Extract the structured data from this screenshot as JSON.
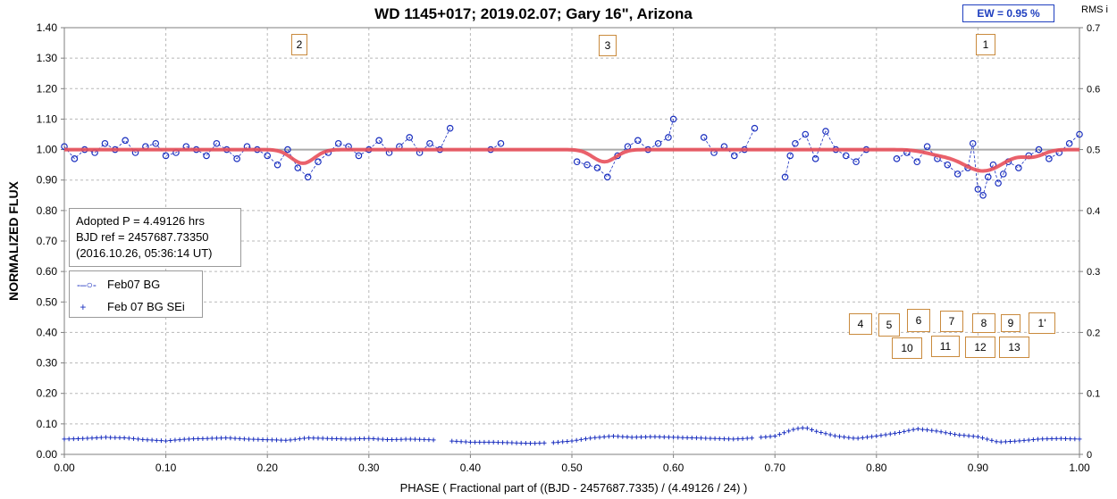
{
  "chart_data": {
    "type": "scatter",
    "title": "WD 1145+017; 2019.02.07; Gary 16\", Arizona",
    "xlabel": "PHASE ( Fractional part of ((BJD - 2457687.7335) / (4.49126 / 24) )",
    "ylabel": "NORMALIZED FLUX",
    "y2label": "RMS i",
    "xlim": [
      0,
      1
    ],
    "ylim": [
      0,
      1.4
    ],
    "y2lim": [
      0,
      0.7
    ],
    "x_ticks": [
      "0.00",
      "0.10",
      "0.20",
      "0.30",
      "0.40",
      "0.50",
      "0.60",
      "0.70",
      "0.80",
      "0.90",
      "1.00"
    ],
    "y_ticks": [
      "0.00",
      "0.10",
      "0.20",
      "0.30",
      "0.40",
      "0.50",
      "0.60",
      "0.70",
      "0.80",
      "0.90",
      "1.00",
      "1.10",
      "1.20",
      "1.30",
      "1.40"
    ],
    "y2_ticks": [
      "0",
      "0.1",
      "0.2",
      "0.3",
      "0.4",
      "0.5",
      "0.6",
      "0.7"
    ],
    "grid": true,
    "reference_line_y": 1.0,
    "dip_model": {
      "name": "model",
      "color": "#e8505b",
      "baseline": 1.0,
      "dips": [
        {
          "center": 0.235,
          "depth": 0.045,
          "width": 0.016
        },
        {
          "center": 0.532,
          "depth": 0.04,
          "width": 0.016
        },
        {
          "center": 0.905,
          "depth": 0.07,
          "width": 0.03
        },
        {
          "center": 0.86,
          "depth": 0.012,
          "width": 0.02
        },
        {
          "center": 0.955,
          "depth": 0.02,
          "width": 0.015
        }
      ]
    },
    "series": [
      {
        "name": "Feb07 BG",
        "marker": "circle",
        "color": "#1a2fbf",
        "line": "dashed",
        "gaps": [
          [
            0.385,
            0.41
          ],
          [
            0.44,
            0.5
          ],
          [
            0.6,
            0.625
          ],
          [
            0.69,
            0.7
          ],
          [
            0.8,
            0.81
          ]
        ],
        "x": [
          0.0,
          0.01,
          0.02,
          0.03,
          0.04,
          0.05,
          0.06,
          0.07,
          0.08,
          0.09,
          0.1,
          0.11,
          0.12,
          0.13,
          0.14,
          0.15,
          0.16,
          0.17,
          0.18,
          0.19,
          0.2,
          0.21,
          0.22,
          0.23,
          0.24,
          0.25,
          0.26,
          0.27,
          0.28,
          0.29,
          0.3,
          0.31,
          0.32,
          0.33,
          0.34,
          0.35,
          0.36,
          0.37,
          0.38,
          0.42,
          0.43,
          0.505,
          0.515,
          0.525,
          0.535,
          0.545,
          0.555,
          0.565,
          0.575,
          0.585,
          0.595,
          0.6,
          0.63,
          0.64,
          0.65,
          0.66,
          0.67,
          0.68,
          0.71,
          0.715,
          0.72,
          0.73,
          0.74,
          0.75,
          0.76,
          0.77,
          0.78,
          0.79,
          0.82,
          0.83,
          0.84,
          0.85,
          0.86,
          0.87,
          0.88,
          0.89,
          0.895,
          0.9,
          0.905,
          0.91,
          0.915,
          0.92,
          0.925,
          0.93,
          0.94,
          0.95,
          0.96,
          0.97,
          0.98,
          0.99,
          1.0
        ],
        "y": [
          1.01,
          0.97,
          1.0,
          0.99,
          1.02,
          1.0,
          1.03,
          0.99,
          1.01,
          1.02,
          0.98,
          0.99,
          1.01,
          1.0,
          0.98,
          1.02,
          1.0,
          0.97,
          1.01,
          1.0,
          0.98,
          0.95,
          1.0,
          0.94,
          0.91,
          0.96,
          0.99,
          1.02,
          1.01,
          0.98,
          1.0,
          1.03,
          0.99,
          1.01,
          1.04,
          0.99,
          1.02,
          1.0,
          1.07,
          1.0,
          1.02,
          0.96,
          0.95,
          0.94,
          0.91,
          0.98,
          1.01,
          1.03,
          1.0,
          1.02,
          1.04,
          1.1,
          1.04,
          0.99,
          1.01,
          0.98,
          1.0,
          1.07,
          0.91,
          0.98,
          1.02,
          1.05,
          0.97,
          1.06,
          1.0,
          0.98,
          0.96,
          1.0,
          0.97,
          0.99,
          0.96,
          1.01,
          0.97,
          0.95,
          0.92,
          0.94,
          1.02,
          0.87,
          0.85,
          0.91,
          0.95,
          0.89,
          0.92,
          0.96,
          0.94,
          0.98,
          1.0,
          0.97,
          0.99,
          1.02,
          1.05
        ]
      },
      {
        "name": "Feb 07 BG SEi",
        "marker": "plus",
        "color": "#1a2fbf",
        "axis": "y2",
        "gaps": [
          [
            0.365,
            0.38
          ],
          [
            0.475,
            0.48
          ],
          [
            0.68,
            0.685
          ]
        ],
        "x": [
          0.0,
          0.02,
          0.04,
          0.06,
          0.08,
          0.1,
          0.12,
          0.14,
          0.16,
          0.18,
          0.2,
          0.22,
          0.24,
          0.26,
          0.28,
          0.3,
          0.32,
          0.34,
          0.36,
          0.38,
          0.4,
          0.42,
          0.44,
          0.46,
          0.48,
          0.5,
          0.52,
          0.54,
          0.56,
          0.58,
          0.6,
          0.62,
          0.64,
          0.66,
          0.68,
          0.7,
          0.72,
          0.73,
          0.74,
          0.76,
          0.78,
          0.8,
          0.82,
          0.84,
          0.86,
          0.88,
          0.9,
          0.92,
          0.94,
          0.96,
          0.98,
          1.0
        ],
        "y": [
          0.025,
          0.026,
          0.028,
          0.027,
          0.024,
          0.022,
          0.025,
          0.026,
          0.027,
          0.025,
          0.024,
          0.023,
          0.027,
          0.026,
          0.025,
          0.026,
          0.024,
          0.025,
          0.024,
          0.022,
          0.02,
          0.02,
          0.019,
          0.018,
          0.019,
          0.022,
          0.027,
          0.03,
          0.028,
          0.029,
          0.028,
          0.027,
          0.026,
          0.025,
          0.027,
          0.03,
          0.042,
          0.044,
          0.038,
          0.03,
          0.026,
          0.03,
          0.035,
          0.042,
          0.038,
          0.032,
          0.029,
          0.02,
          0.022,
          0.025,
          0.026,
          0.025
        ]
      }
    ]
  },
  "info": {
    "line1": "Adopted P = 4.49126 hrs",
    "line2": "BJD ref = 2457687.73350",
    "line3": "(2016.10.26, 05:36:14 UT)"
  },
  "legend": {
    "item1": "Feb07 BG",
    "item2": "Feb 07 BG SEi"
  },
  "ew_label": "EW =  0.95 %",
  "dip_labels": {
    "d2": "2",
    "d3": "3",
    "d1": "1",
    "d4": "4",
    "d5": "5",
    "d6": "6",
    "d7": "7",
    "d8": "8",
    "d9": "9",
    "d1p": "1'",
    "d10": "10",
    "d11": "11",
    "d12": "12",
    "d13": "13"
  }
}
